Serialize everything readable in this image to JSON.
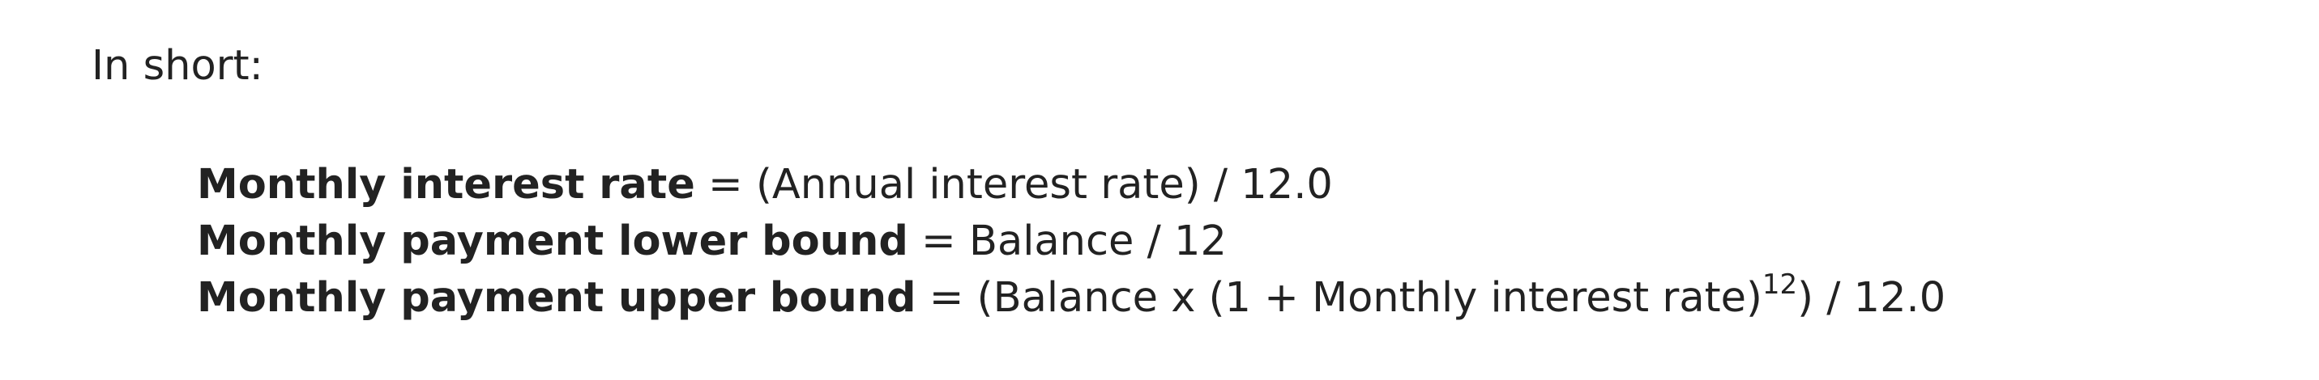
{
  "intro": "In short:",
  "formulas": [
    {
      "term": "Monthly interest rate",
      "expression_before": " = (Annual interest rate) / 12.0",
      "superscript": "",
      "expression_after": ""
    },
    {
      "term": "Monthly payment lower bound",
      "expression_before": " = Balance / 12",
      "superscript": "",
      "expression_after": ""
    },
    {
      "term": "Monthly payment upper bound",
      "expression_before": " = (Balance x (1 + Monthly interest rate)",
      "superscript": "12",
      "expression_after": ") / 12.0"
    }
  ]
}
